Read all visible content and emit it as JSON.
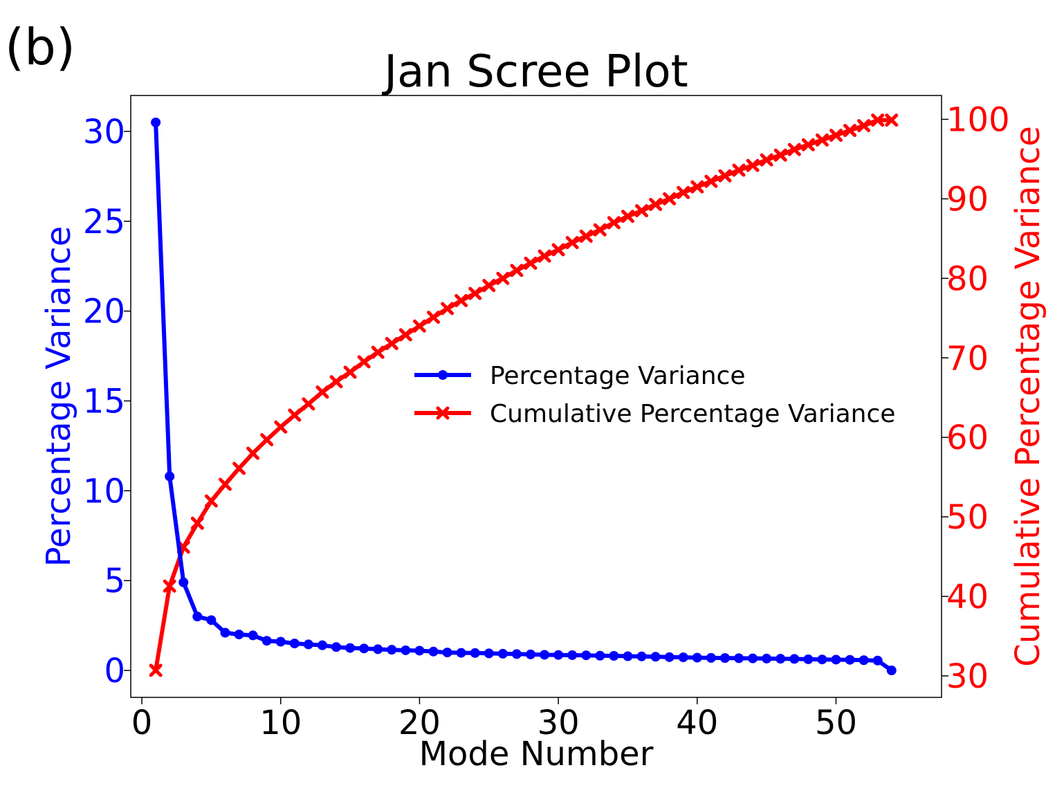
{
  "panel_label": "(b)",
  "chart_data": {
    "type": "line",
    "title": "Jan Scree Plot",
    "xlabel": "Mode Number",
    "ylabel_left": "Percentage Variance",
    "ylabel_right": "Cumulative Percentage Variance",
    "xlim": [
      -0.8,
      57.6
    ],
    "ylim_left": [
      -1.5,
      32
    ],
    "ylim_right": [
      27.3,
      103.0
    ],
    "xticks": [
      0,
      10,
      20,
      30,
      40,
      50
    ],
    "yticks_left": [
      0,
      5,
      10,
      15,
      20,
      25,
      30
    ],
    "yticks_right": [
      30,
      40,
      50,
      60,
      70,
      80,
      90,
      100
    ],
    "grid": false,
    "legend_position": "center-right",
    "colors": {
      "left_series": "#0000ff",
      "right_series": "#ff0000",
      "text": "#000000"
    },
    "x": [
      1,
      2,
      3,
      4,
      5,
      6,
      7,
      8,
      9,
      10,
      11,
      12,
      13,
      14,
      15,
      16,
      17,
      18,
      19,
      20,
      21,
      22,
      23,
      24,
      25,
      26,
      27,
      28,
      29,
      30,
      31,
      32,
      33,
      34,
      35,
      36,
      37,
      38,
      39,
      40,
      41,
      42,
      43,
      44,
      45,
      46,
      47,
      48,
      49,
      50,
      51,
      52,
      53,
      54
    ],
    "series": [
      {
        "name": "Percentage Variance",
        "axis": "left",
        "marker": "circle",
        "values": [
          30.5,
          10.8,
          4.9,
          3.0,
          2.8,
          2.1,
          2.0,
          1.95,
          1.65,
          1.6,
          1.5,
          1.45,
          1.4,
          1.3,
          1.25,
          1.22,
          1.18,
          1.15,
          1.12,
          1.1,
          1.05,
          1.0,
          0.98,
          0.97,
          0.95,
          0.93,
          0.91,
          0.89,
          0.87,
          0.86,
          0.85,
          0.84,
          0.82,
          0.81,
          0.79,
          0.78,
          0.76,
          0.74,
          0.73,
          0.71,
          0.7,
          0.69,
          0.68,
          0.67,
          0.66,
          0.65,
          0.64,
          0.62,
          0.61,
          0.6,
          0.59,
          0.57,
          0.55,
          0.0
        ]
      },
      {
        "name": "Cumulative Percentage Variance",
        "axis": "right",
        "marker": "x",
        "values": [
          30.7,
          41.3,
          46.2,
          49.2,
          52.0,
          54.1,
          56.1,
          58.0,
          59.7,
          61.3,
          62.8,
          64.2,
          65.7,
          67.0,
          68.2,
          69.5,
          70.7,
          71.8,
          72.9,
          74.0,
          75.1,
          76.2,
          77.2,
          78.1,
          79.1,
          80.0,
          81.0,
          81.9,
          82.8,
          83.6,
          84.5,
          85.3,
          86.1,
          87.0,
          87.8,
          88.5,
          89.3,
          90.0,
          90.8,
          91.5,
          92.2,
          92.9,
          93.6,
          94.2,
          94.9,
          95.5,
          96.2,
          96.8,
          97.4,
          98.0,
          98.6,
          99.2,
          99.9,
          99.9
        ]
      }
    ]
  }
}
